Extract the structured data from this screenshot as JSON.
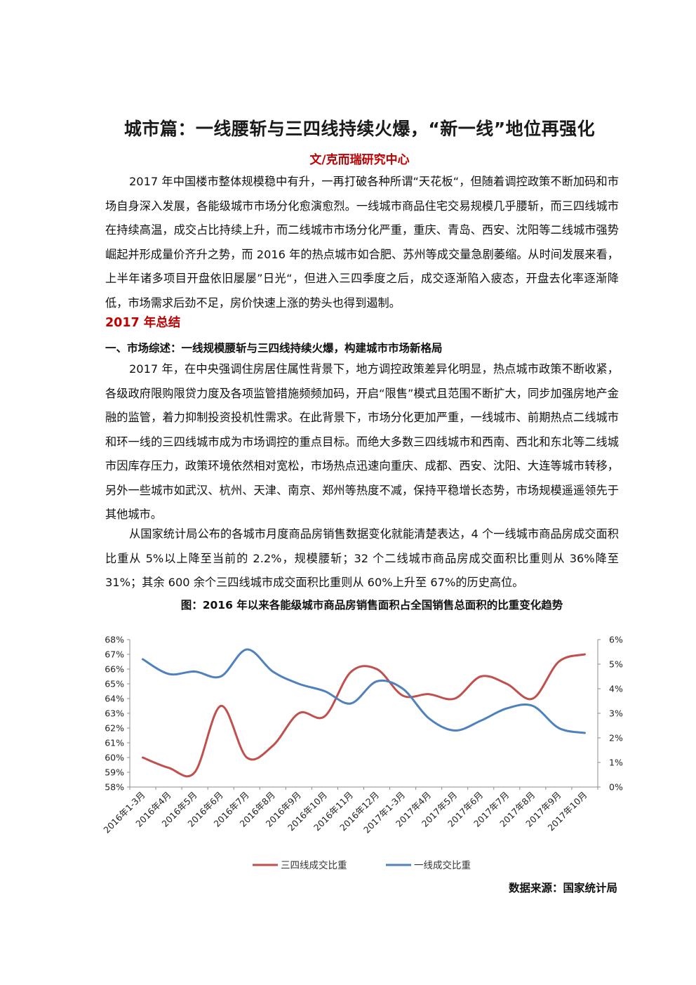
{
  "doc": {
    "title": "城市篇：一线腰斩与三四线持续火爆，“新一线”地位再强化",
    "author": "文/克而瑞研究中心",
    "para1": "2017 年中国楼市整体规模稳中有升，一再打破各种所谓“天花板“，但随着调控政策不断加码和市场自身深入发展，各能级城市市场分化愈演愈烈。一线城市商品住宅交易规模几乎腰斩，而三四线城市在持续高温，成交占比持续上升，而二线城市市场分化严重，重庆、青岛、西安、沈阳等二线城市强势崛起并形成量价齐升之势，而 2016 年的热点城市如合肥、苏州等成交量急剧萎缩。从时间发展来看，上半年诸多项目开盘依旧屡屡”日光“，但进入三四季度之后，成交逐渐陷入疲态，开盘去化率逐渐降低，市场需求后劲不足，房价快速上涨的势头也得到遏制。",
    "heading_year": "2017 年总结",
    "heading_section": "一、市场综述：一线规模腰斩与三四线持续火爆，构建城市市场新格局",
    "para2": "2017 年，在中央强调住房居住属性背景下，地方调控政策差异化明显，热点城市政策不断收紧，各级政府限购限贷力度及各项监管措施频频加码，开启“限售”模式且范围不断扩大，同步加强房地产金融的监管，着力抑制投资投机性需求。在此背景下，市场分化更加严重，一线城市、前期热点二线城市和环一线的三四线城市成为市场调控的重点目标。而绝大多数三四线城市和西南、西北和东北等二线城市因库存压力，政策环境依然相对宽松，市场热点迅速向重庆、成都、西安、沈阳、大连等城市转移，另外一些城市如武汉、杭州、天津、南京、郑州等热度不减，保持平稳增长态势，市场规模遥遥领先于其他城市。",
    "para3": "从国家统计局公布的各城市月度商品房销售数据变化就能清楚表达，4 个一线城市商品房成交面积比重从 5%以上降至当前的 2.2%，规模腰斩；32 个二线城市商品房成交面积比重则从 36%降至 31%；其余 600 余个三四线城市成交面积比重则从 60%上升至 67%的历史高位。",
    "chart_title": "图：2016 年以来各能级城市商品房销售面积占全国销售总面积的比重变化趋势",
    "source": "数据来源：国家统计局"
  },
  "chart_data": {
    "type": "line",
    "categories": [
      "2016年1-3月",
      "2016年4月",
      "2016年5月",
      "2016年6月",
      "2016年7月",
      "2016年8月",
      "2016年9月",
      "2016年10月",
      "2016年11月",
      "2016年12月",
      "2017年1-3月",
      "2017年4月",
      "2017年5月",
      "2017年6月",
      "2017年7月",
      "2017年8月",
      "2017年9月",
      "2017年10月"
    ],
    "series": [
      {
        "name": "三四线成交比重",
        "axis": "left",
        "color": "#c0504d",
        "values": [
          60.0,
          59.3,
          59.0,
          63.5,
          60.0,
          60.8,
          63.0,
          62.8,
          65.8,
          66.0,
          64.2,
          64.3,
          64.0,
          65.5,
          65.0,
          64.0,
          66.5,
          67.0
        ]
      },
      {
        "name": "一线成交比重",
        "axis": "right",
        "color": "#4f81bd",
        "values": [
          5.2,
          4.6,
          4.7,
          4.5,
          5.6,
          4.7,
          4.2,
          3.9,
          3.4,
          4.3,
          4.0,
          2.8,
          2.3,
          2.7,
          3.2,
          3.3,
          2.4,
          2.2
        ]
      }
    ],
    "y_left": {
      "min": 58,
      "max": 68,
      "step": 1,
      "unit": "%"
    },
    "y_right": {
      "min": 0,
      "max": 6,
      "step": 1,
      "unit": "%"
    },
    "grid": false,
    "legend_position": "bottom"
  }
}
